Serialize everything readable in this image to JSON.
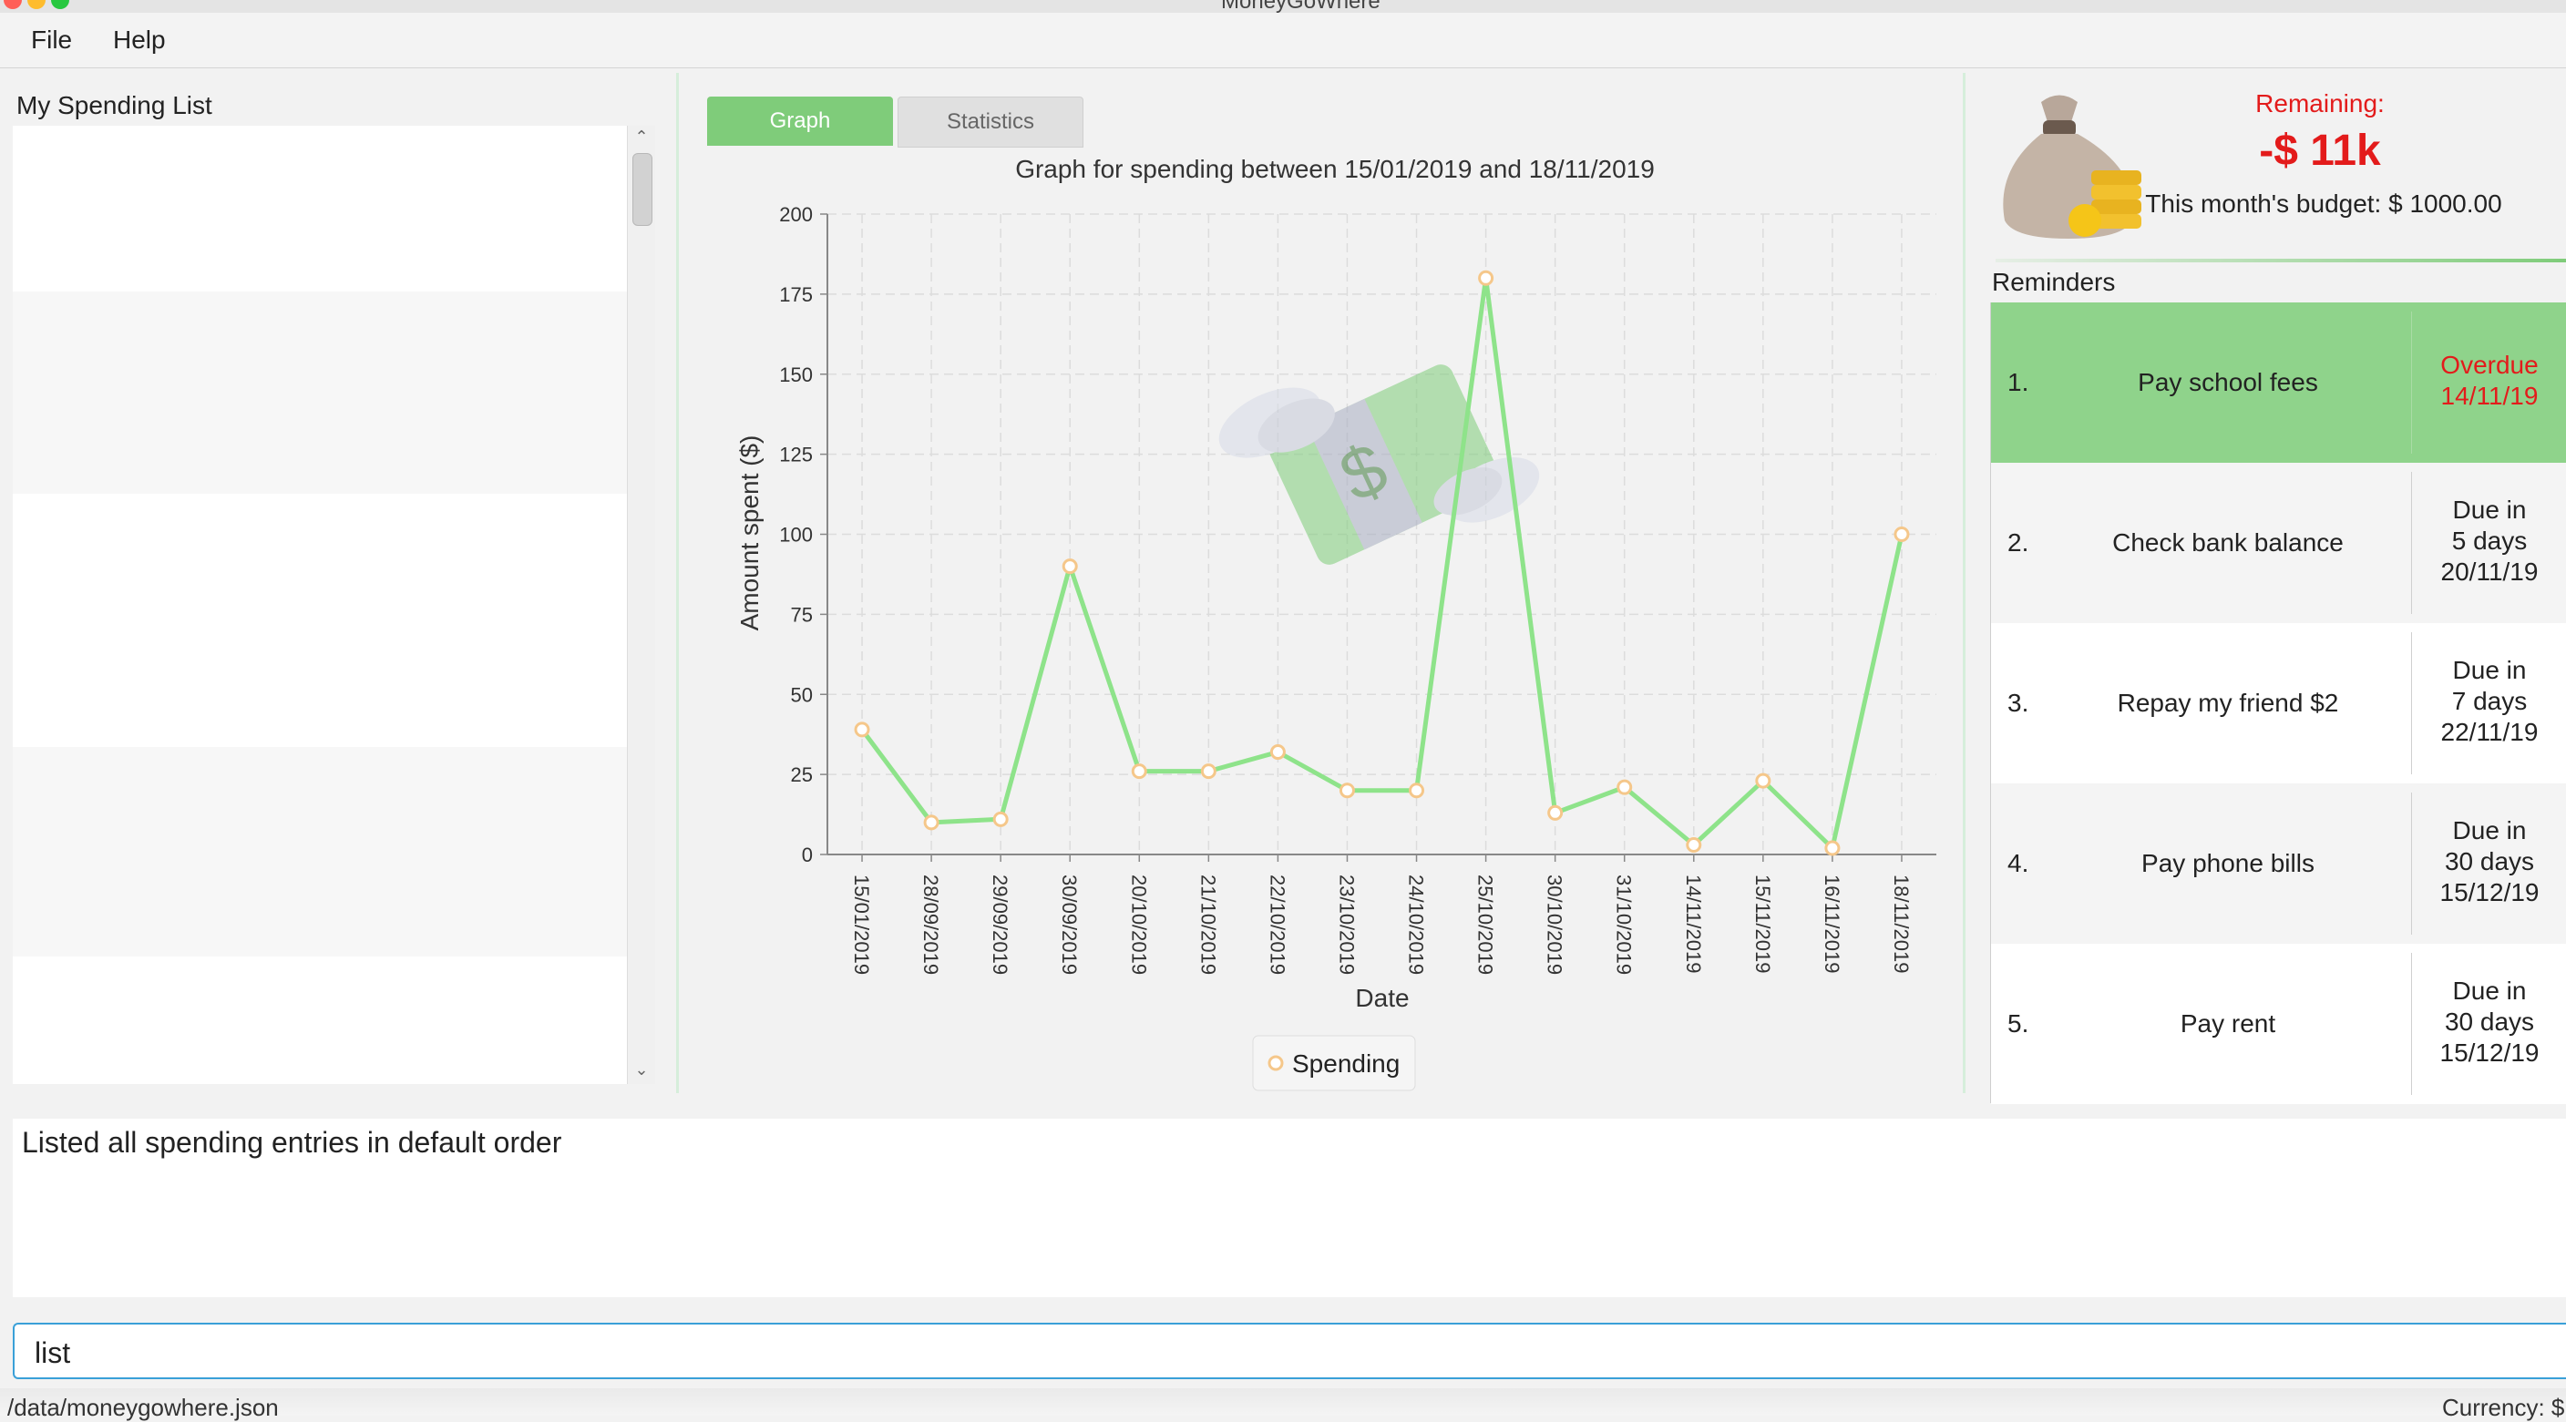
{
  "window": {
    "title": "MoneyGoWhere"
  },
  "menu": {
    "file": "File",
    "help": "Help"
  },
  "left_panel": {
    "title": "My Spending List"
  },
  "tabs": {
    "graph": "Graph",
    "statistics": "Statistics"
  },
  "chart_data": {
    "type": "line",
    "title": "Graph for spending between 15/01/2019 and 18/11/2019",
    "xlabel": "Date",
    "ylabel": "Amount spent ($)",
    "ylim": [
      0,
      200
    ],
    "yticks": [
      "0",
      "25",
      "50",
      "75",
      "100",
      "125",
      "150",
      "175",
      "200"
    ],
    "categories": [
      "15/01/2019",
      "28/09/2019",
      "29/09/2019",
      "30/09/2019",
      "20/10/2019",
      "21/10/2019",
      "22/10/2019",
      "23/10/2019",
      "24/10/2019",
      "25/10/2019",
      "30/10/2019",
      "31/10/2019",
      "14/11/2019",
      "15/11/2019",
      "16/11/2019",
      "18/11/2019"
    ],
    "series": [
      {
        "name": "Spending",
        "values": [
          39,
          10,
          11,
          90,
          26,
          26,
          32,
          20,
          20,
          180,
          13,
          21,
          3,
          23,
          2,
          100
        ]
      }
    ],
    "grid": true,
    "legend_position": "bottom",
    "colors": {
      "line": "#8ee38a",
      "point": "#f5c78a"
    }
  },
  "budget": {
    "remaining_label": "Remaining:",
    "remaining_value": "-$ 11k",
    "budget_text": "This month's budget: $ 1000.00"
  },
  "reminders": {
    "title": "Reminders",
    "items": [
      {
        "num": "1.",
        "text": "Pay school fees",
        "due": [
          "Overdue",
          "14/11/19"
        ],
        "overdue": true
      },
      {
        "num": "2.",
        "text": "Check bank balance",
        "due": [
          "Due in",
          "5 days",
          "20/11/19"
        ],
        "overdue": false
      },
      {
        "num": "3.",
        "text": "Repay my friend $2",
        "due": [
          "Due in",
          "7 days",
          "22/11/19"
        ],
        "overdue": false
      },
      {
        "num": "4.",
        "text": "Pay phone bills",
        "due": [
          "Due in",
          "30 days",
          "15/12/19"
        ],
        "overdue": false
      },
      {
        "num": "5.",
        "text": "Pay rent",
        "due": [
          "Due in",
          "30 days",
          "15/12/19"
        ],
        "overdue": false
      }
    ]
  },
  "result": {
    "text": "Listed all spending entries in default order"
  },
  "command": {
    "value": "list"
  },
  "status": {
    "path": "/data/moneygowhere.json",
    "currency": "Currency: $"
  },
  "colors": {
    "accent": "#7fcc7a",
    "overdue": "#e31b1b",
    "command_border": "#3aa0d8"
  }
}
